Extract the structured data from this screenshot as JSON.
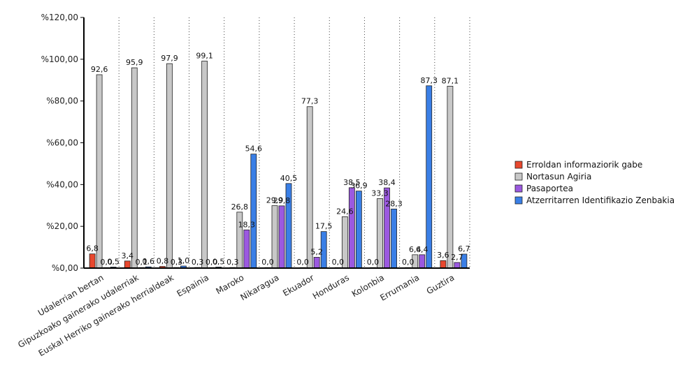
{
  "chart_data": {
    "type": "bar",
    "categories": [
      "Udalerrian bertan",
      "Gipuzkoako gainerako udalerriak",
      "Euskal Herriko gainerako herrialdeak",
      "Espainia",
      "Maroko",
      "Nikaragua",
      "Ekuador",
      "Honduras",
      "Kolonbia",
      "Errumania",
      "Guztira"
    ],
    "series": [
      {
        "name": "Erroldan informaziorik gabe",
        "color": "#e8482e",
        "values": [
          6.8,
          3.4,
          0.8,
          0.3,
          0.3,
          0.0,
          0.0,
          0.0,
          0.0,
          0.0,
          3.6
        ],
        "labels": [
          "6,8",
          "3,4",
          "0,8",
          "0,3",
          "0,3",
          "0,0",
          "0,0",
          "0,0",
          "0,0",
          "0,0",
          "3,6"
        ]
      },
      {
        "name": "Nortasun Agiria",
        "color": "#c8c8c8",
        "values": [
          92.6,
          95.9,
          97.9,
          99.1,
          26.8,
          29.9,
          77.3,
          24.6,
          33.3,
          6.4,
          87.1
        ],
        "labels": [
          "92,6",
          "95,9",
          "97,9",
          "99,1",
          "26,8",
          "29,9",
          "77,3",
          "24,6",
          "33,3",
          "6,4",
          "87,1"
        ]
      },
      {
        "name": "Pasaportea",
        "color": "#9b59e0",
        "values": [
          0.0,
          0.1,
          0.3,
          0.0,
          18.3,
          29.8,
          5.2,
          38.5,
          38.4,
          6.4,
          2.7
        ],
        "labels": [
          "0,0",
          "0,1",
          "0,3",
          "0,0",
          "18,3",
          "29,8",
          "5,2",
          "38,5",
          "38,4",
          "6,4",
          "2,7"
        ]
      },
      {
        "name": "Atzerritarren Identifikazio Zenbakia",
        "color": "#3a7fe6",
        "values": [
          0.5,
          0.6,
          1.0,
          0.5,
          54.6,
          40.5,
          17.5,
          36.9,
          28.3,
          87.3,
          6.7
        ],
        "labels": [
          "0,5",
          "0,6",
          "1,0",
          "0,5",
          "54,6",
          "40,5",
          "17,5",
          "36,9",
          "28,3",
          "87,3",
          "6,7"
        ]
      }
    ],
    "yticks": [
      "%0,00",
      "%20,00",
      "%40,00",
      "%60,00",
      "%80,00",
      "%100,00",
      "%120,00"
    ],
    "ylim": [
      0,
      120
    ],
    "grid": "vertical dotted",
    "legend_position": "right"
  }
}
